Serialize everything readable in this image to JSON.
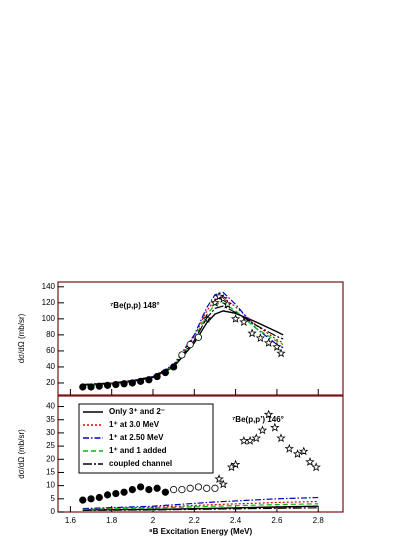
{
  "chart_data": [
    {
      "type": "line",
      "annotation": "⁷Be(p,p)  148°",
      "ylabel": "dσ/dΩ (mb/sr)",
      "xlim": [
        1.54,
        2.92
      ],
      "xticks": [
        1.6,
        1.8,
        2,
        2.2,
        2.4,
        2.6,
        2.8
      ],
      "xticklabels": false,
      "ylim": [
        5,
        146
      ],
      "yticks": [
        20,
        40,
        60,
        80,
        100,
        120,
        140
      ],
      "series": [
        {
          "color": "#000000",
          "style": "solid",
          "x": [
            1.66,
            1.8,
            1.9,
            2.0,
            2.1,
            2.2,
            2.26,
            2.3,
            2.34,
            2.4,
            2.5,
            2.6,
            2.63
          ],
          "values": [
            17,
            19,
            22,
            27,
            40,
            70,
            95,
            106,
            110,
            107,
            96,
            84,
            80
          ]
        },
        {
          "color": "#dd0000",
          "style": "dotted",
          "x": [
            1.66,
            1.8,
            1.9,
            2.0,
            2.1,
            2.2,
            2.26,
            2.3,
            2.34,
            2.4,
            2.5,
            2.6,
            2.63
          ],
          "values": [
            18,
            20,
            23,
            28,
            42,
            78,
            110,
            124,
            126,
            115,
            92,
            74,
            70
          ]
        },
        {
          "color": "#0000cc",
          "style": "dashdot",
          "x": [
            1.66,
            1.8,
            1.9,
            2.0,
            2.1,
            2.2,
            2.26,
            2.3,
            2.34,
            2.4,
            2.5,
            2.6,
            2.63
          ],
          "values": [
            18,
            20,
            23,
            28,
            43,
            80,
            114,
            130,
            133,
            118,
            88,
            68,
            64
          ]
        },
        {
          "color": "#00bb00",
          "style": "dashed",
          "x": [
            1.66,
            1.8,
            1.9,
            2.0,
            2.1,
            2.2,
            2.26,
            2.3,
            2.34,
            2.4,
            2.5,
            2.6,
            2.63
          ],
          "values": [
            17,
            19,
            22,
            27,
            41,
            75,
            105,
            118,
            120,
            110,
            88,
            72,
            68
          ]
        },
        {
          "color": "#000000",
          "style": "longdashdot",
          "x": [
            1.66,
            1.8,
            1.9,
            2.0,
            2.1,
            2.2,
            2.26,
            2.3,
            2.34,
            2.4,
            2.5,
            2.6,
            2.63
          ],
          "values": [
            18,
            20,
            23,
            28,
            41,
            73,
            101,
            113,
            116,
            108,
            92,
            78,
            75
          ]
        },
        {
          "color": "#000000",
          "marker": "filled",
          "x": [
            1.66,
            1.7,
            1.74,
            1.78,
            1.82,
            1.86,
            1.9,
            1.94,
            1.98,
            2.02,
            2.06,
            2.1
          ],
          "values": [
            15,
            15,
            16,
            17,
            18,
            19,
            20,
            22,
            24,
            28,
            33,
            40
          ]
        },
        {
          "color": "#000000",
          "marker": "open",
          "x": [
            2.14,
            2.18,
            2.22
          ],
          "values": [
            55,
            68,
            77
          ]
        },
        {
          "color": "#000000",
          "marker": "star",
          "x": [
            2.26,
            2.3,
            2.32,
            2.34,
            2.36,
            2.4,
            2.44,
            2.48,
            2.52,
            2.56,
            2.6,
            2.62
          ],
          "values": [
            100,
            120,
            128,
            125,
            118,
            100,
            96,
            82,
            76,
            70,
            65,
            57
          ]
        }
      ]
    },
    {
      "type": "line",
      "annotation": "⁷Be(p,p’)  146°",
      "ylabel": "dσ/dΩ (mb/sr)",
      "xlabel": "⁸B Excitation Energy (MeV)",
      "xlim": [
        1.54,
        2.92
      ],
      "xticks": [
        1.6,
        1.8,
        2,
        2.2,
        2.4,
        2.6,
        2.8
      ],
      "xticklabels": true,
      "ylim": [
        0,
        44
      ],
      "yticks": [
        0,
        5,
        10,
        15,
        20,
        25,
        30,
        35,
        40
      ],
      "legend": "upper-left",
      "series": [
        {
          "name": "Only 3⁺ and 2⁻",
          "color": "#000000",
          "style": "solid",
          "x": [
            1.66,
            2.0,
            2.3,
            2.6,
            2.8
          ],
          "values": [
            0.8,
            1.0,
            1.4,
            1.9,
            2.2
          ]
        },
        {
          "name": "1⁺ at 3.0 MeV",
          "color": "#dd0000",
          "style": "dotted",
          "x": [
            1.66,
            2.0,
            2.3,
            2.6,
            2.8
          ],
          "values": [
            1.2,
            1.8,
            2.8,
            3.6,
            4.0
          ]
        },
        {
          "name": "1⁺ at 2.50 MeV",
          "color": "#0000cc",
          "style": "dashdot",
          "x": [
            1.66,
            2.0,
            2.3,
            2.6,
            2.8
          ],
          "values": [
            1.3,
            2.2,
            3.8,
            5.0,
            5.5
          ]
        },
        {
          "name": "1⁺ and 1 added",
          "color": "#00bb00",
          "style": "dashed",
          "x": [
            1.66,
            2.0,
            2.3,
            2.6,
            2.8
          ],
          "values": [
            1.0,
            1.5,
            2.2,
            2.8,
            3.1
          ]
        },
        {
          "name": "coupled channel",
          "color": "#000000",
          "style": "longdashdot",
          "x": [
            1.66,
            2.0,
            2.3,
            2.6,
            2.8
          ],
          "values": [
            0.6,
            0.8,
            1.1,
            1.4,
            1.6
          ]
        },
        {
          "color": "#000000",
          "marker": "filled",
          "x": [
            1.66,
            1.7,
            1.74,
            1.78,
            1.82,
            1.86,
            1.9,
            1.94,
            1.98,
            2.02,
            2.06
          ],
          "values": [
            4.5,
            5,
            5.5,
            6.5,
            7,
            7.5,
            8.5,
            9.5,
            8.5,
            9,
            7.5
          ]
        },
        {
          "color": "#000000",
          "marker": "open",
          "x": [
            2.1,
            2.14,
            2.18,
            2.22,
            2.26,
            2.3
          ],
          "values": [
            8.5,
            8.5,
            9,
            9.5,
            9,
            9
          ]
        },
        {
          "color": "#000000",
          "marker": "star",
          "x": [
            2.32,
            2.34,
            2.38,
            2.4,
            2.44,
            2.47,
            2.5,
            2.53,
            2.56,
            2.59,
            2.62,
            2.66,
            2.7,
            2.73,
            2.76,
            2.79
          ],
          "values": [
            12.5,
            10.5,
            17,
            18,
            27,
            27,
            28,
            31,
            37,
            32,
            28,
            24,
            22,
            23,
            19,
            17
          ]
        }
      ]
    }
  ]
}
